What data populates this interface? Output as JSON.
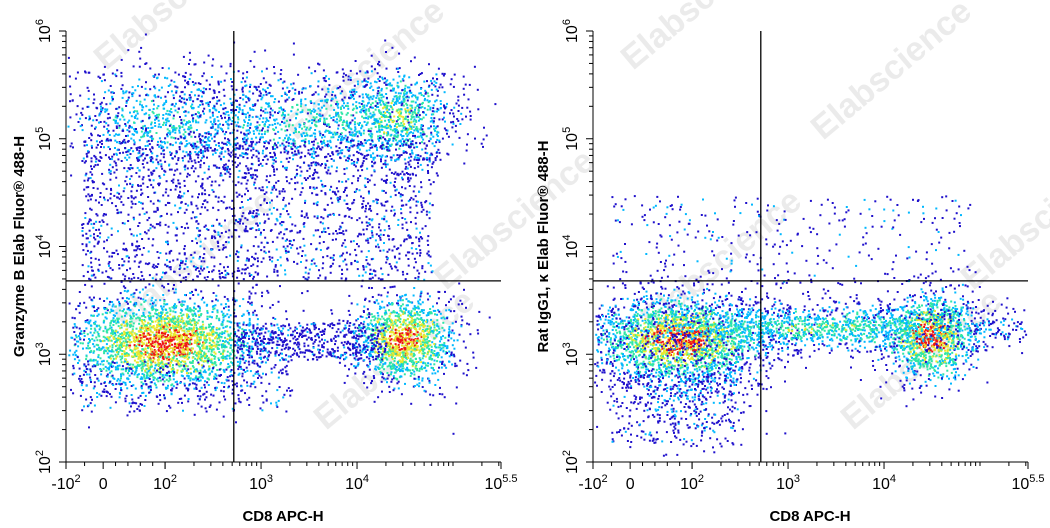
{
  "chart_data": [
    {
      "type": "scatter",
      "subtype": "flow-cytometry-density",
      "xlabel": "CD8 APC-H",
      "ylabel": "Granzyme B Elab Fluor® 488-H",
      "x_scale": "biexponential",
      "y_scale": "log",
      "xlim": [
        -100,
        316228
      ],
      "ylim": [
        100,
        1000000
      ],
      "x_ticks": [
        {
          "value": -100,
          "base": "-10",
          "exp": "2"
        },
        {
          "value": 0,
          "base": "0",
          "exp": ""
        },
        {
          "value": 100,
          "base": "10",
          "exp": "2"
        },
        {
          "value": 1000,
          "base": "10",
          "exp": "3"
        },
        {
          "value": 10000,
          "base": "10",
          "exp": "4"
        },
        {
          "value": 316228,
          "base": "10",
          "exp": "5.5"
        }
      ],
      "y_ticks": [
        {
          "value": 100,
          "base": "10",
          "exp": "2"
        },
        {
          "value": 1000,
          "base": "10",
          "exp": "3"
        },
        {
          "value": 10000,
          "base": "10",
          "exp": "4"
        },
        {
          "value": 100000,
          "base": "10",
          "exp": "5"
        },
        {
          "value": 1000000,
          "base": "10",
          "exp": "6"
        }
      ],
      "gate": {
        "x": 520,
        "y": 4800
      },
      "populations": [
        {
          "x": 100,
          "y": 1300,
          "intensity": "high"
        },
        {
          "x": 30000,
          "y": 1400,
          "intensity": "high"
        },
        {
          "x": 25000,
          "y": 160000,
          "intensity": "medium"
        },
        {
          "x": 100,
          "y": 150000,
          "intensity": "low"
        },
        {
          "x": 3000,
          "y": 150000,
          "intensity": "low"
        }
      ],
      "watermark": "Elabscience"
    },
    {
      "type": "scatter",
      "subtype": "flow-cytometry-density",
      "xlabel": "CD8 APC-H",
      "ylabel": "Rat IgG1, κ Elab Fluor® 488-H",
      "x_scale": "biexponential",
      "y_scale": "log",
      "xlim": [
        -100,
        316228
      ],
      "ylim": [
        100,
        1000000
      ],
      "x_ticks": [
        {
          "value": -100,
          "base": "-10",
          "exp": "2"
        },
        {
          "value": 0,
          "base": "0",
          "exp": ""
        },
        {
          "value": 100,
          "base": "10",
          "exp": "2"
        },
        {
          "value": 1000,
          "base": "10",
          "exp": "3"
        },
        {
          "value": 10000,
          "base": "10",
          "exp": "4"
        },
        {
          "value": 316228,
          "base": "10",
          "exp": "5.5"
        }
      ],
      "y_ticks": [
        {
          "value": 100,
          "base": "10",
          "exp": "2"
        },
        {
          "value": 1000,
          "base": "10",
          "exp": "3"
        },
        {
          "value": 10000,
          "base": "10",
          "exp": "4"
        },
        {
          "value": 100000,
          "base": "10",
          "exp": "5"
        },
        {
          "value": 1000000,
          "base": "10",
          "exp": "6"
        }
      ],
      "gate": {
        "x": 520,
        "y": 4800
      },
      "populations": [
        {
          "x": 80,
          "y": 1400,
          "intensity": "high"
        },
        {
          "x": 30000,
          "y": 1500,
          "intensity": "high"
        },
        {
          "x": 2000,
          "y": 1900,
          "intensity": "medium"
        }
      ],
      "watermark": "Elabscience"
    }
  ],
  "colors": {
    "density_low": "#1f10cc",
    "density_mid_low": "#00b8ff",
    "density_mid": "#2ee6a6",
    "density_mid_high": "#e8e82e",
    "density_high": "#ee1515",
    "axis": "#000000",
    "watermark": "#d4d4d4"
  }
}
